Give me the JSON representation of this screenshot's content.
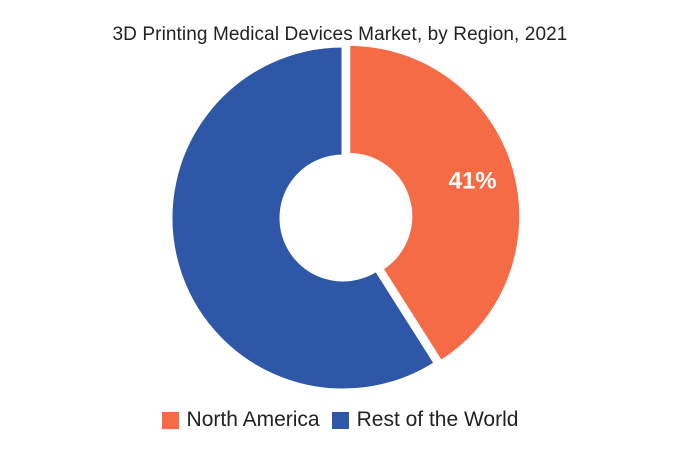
{
  "chart_data": {
    "type": "pie",
    "title": "3D Printing Medical Devices Market, by Region, 2021",
    "categories": [
      "North America",
      "Rest of the World"
    ],
    "values": [
      41,
      59
    ],
    "unit": "%",
    "data_labels": [
      "41%",
      ""
    ],
    "colors": [
      "#F46B45",
      "#2F57A8"
    ],
    "donut": true,
    "legend_position": "bottom"
  }
}
